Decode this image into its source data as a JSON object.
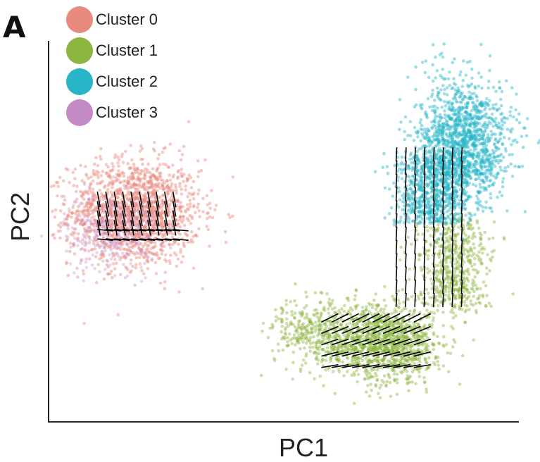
{
  "chart_data": {
    "type": "scatter",
    "panel_label": "A",
    "xlabel": "PC1",
    "ylabel": "PC2",
    "x_ticks": [],
    "y_ticks": [],
    "grid": false,
    "legend_placement": "top-left",
    "overlay": "velocity arrows (black) over points",
    "series": [
      {
        "name": "Cluster 0",
        "color": "#E98A7F",
        "center": [
          0.18,
          0.55
        ],
        "spread": [
          0.07,
          0.07
        ],
        "approx_points": 1600
      },
      {
        "name": "Cluster 1",
        "color": "#8DB542",
        "center": [
          0.75,
          0.24
        ],
        "spread": [
          0.1,
          0.06
        ],
        "approx_points": 2000
      },
      {
        "name": "Cluster 2",
        "color": "#29B5C8",
        "center": [
          0.87,
          0.72
        ],
        "spread": [
          0.05,
          0.08
        ],
        "approx_points": 2200
      },
      {
        "name": "Cluster 3",
        "color": "#C48AC6",
        "center": [
          0.13,
          0.5
        ],
        "spread": [
          0.05,
          0.05
        ],
        "approx_points": 300
      }
    ]
  },
  "legend": {
    "items": [
      {
        "label": "Cluster 0",
        "color": "#E98A7F"
      },
      {
        "label": "Cluster 1",
        "color": "#8DB542"
      },
      {
        "label": "Cluster 2",
        "color": "#29B5C8"
      },
      {
        "label": "Cluster 3",
        "color": "#C48AC6"
      }
    ]
  }
}
